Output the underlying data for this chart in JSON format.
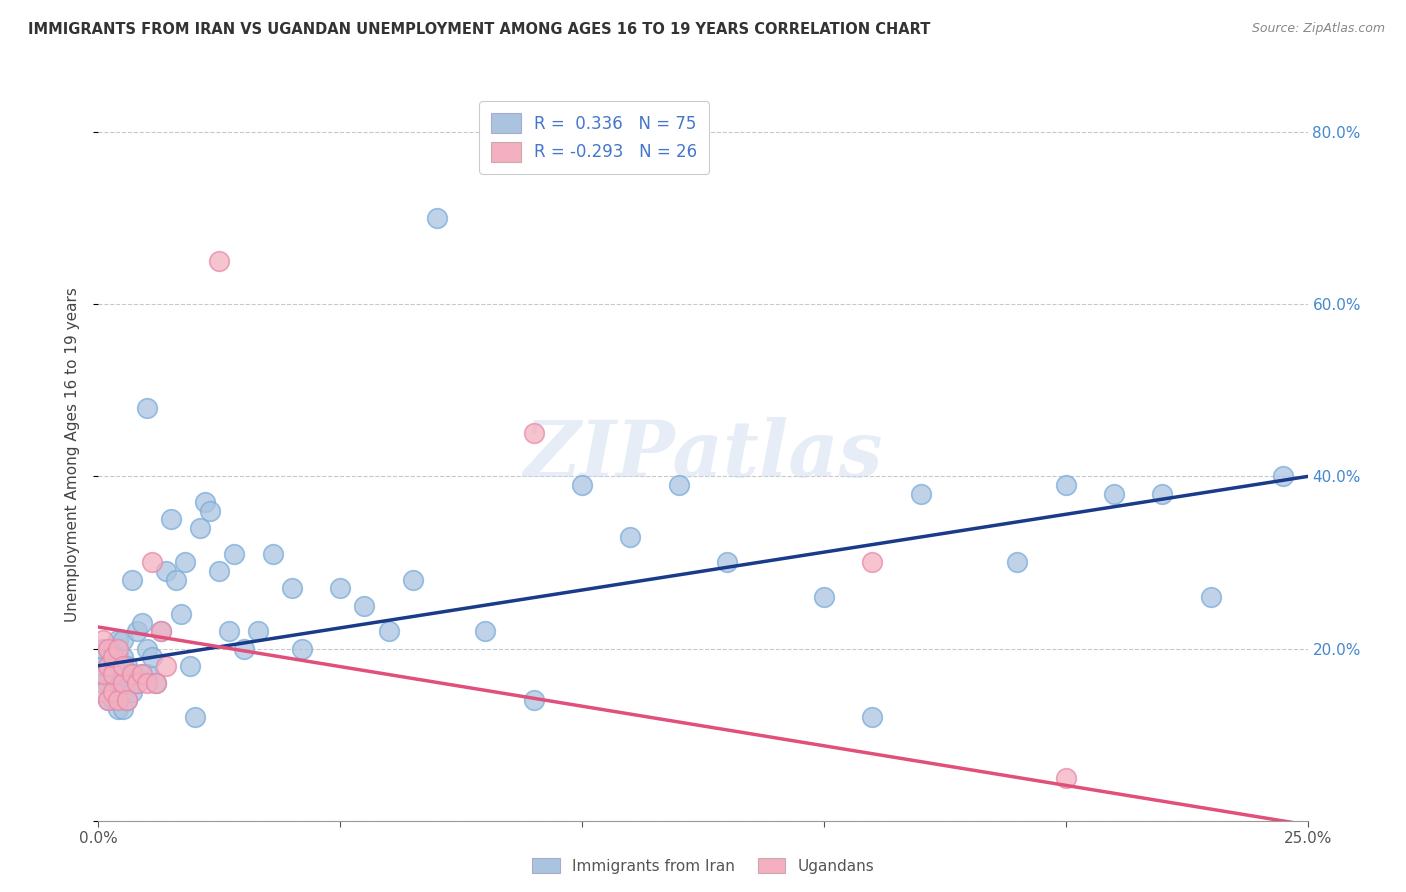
{
  "title": "IMMIGRANTS FROM IRAN VS UGANDAN UNEMPLOYMENT AMONG AGES 16 TO 19 YEARS CORRELATION CHART",
  "source": "Source: ZipAtlas.com",
  "ylabel": "Unemployment Among Ages 16 to 19 years",
  "xmin": 0.0,
  "xmax": 0.25,
  "ymin": 0.0,
  "ymax": 0.85,
  "x_ticks": [
    0.0,
    0.05,
    0.1,
    0.15,
    0.2,
    0.25
  ],
  "y_ticks": [
    0.0,
    0.2,
    0.4,
    0.6,
    0.8
  ],
  "iran_color": "#aac4e0",
  "uganda_color": "#f4b0c0",
  "iran_line_color": "#1a3a8a",
  "uganda_line_color": "#e0507a",
  "iran_r": 0.336,
  "iran_n": 75,
  "uganda_r": -0.293,
  "uganda_n": 26,
  "watermark": "ZIPatlas",
  "background_color": "#ffffff",
  "grid_color": "#bbbbbb",
  "iran_scatter_x": [
    0.001,
    0.001,
    0.001,
    0.002,
    0.002,
    0.002,
    0.002,
    0.003,
    0.003,
    0.003,
    0.003,
    0.004,
    0.004,
    0.004,
    0.004,
    0.004,
    0.005,
    0.005,
    0.005,
    0.005,
    0.005,
    0.006,
    0.006,
    0.006,
    0.007,
    0.007,
    0.007,
    0.008,
    0.008,
    0.009,
    0.009,
    0.01,
    0.01,
    0.01,
    0.011,
    0.012,
    0.013,
    0.014,
    0.015,
    0.016,
    0.017,
    0.018,
    0.019,
    0.02,
    0.021,
    0.022,
    0.023,
    0.025,
    0.027,
    0.028,
    0.03,
    0.033,
    0.036,
    0.04,
    0.042,
    0.05,
    0.055,
    0.06,
    0.065,
    0.07,
    0.08,
    0.09,
    0.1,
    0.11,
    0.12,
    0.13,
    0.15,
    0.16,
    0.17,
    0.19,
    0.2,
    0.21,
    0.22,
    0.23,
    0.245
  ],
  "iran_scatter_y": [
    0.16,
    0.18,
    0.2,
    0.14,
    0.16,
    0.18,
    0.2,
    0.14,
    0.16,
    0.18,
    0.2,
    0.13,
    0.15,
    0.17,
    0.19,
    0.21,
    0.13,
    0.15,
    0.17,
    0.19,
    0.21,
    0.14,
    0.16,
    0.18,
    0.15,
    0.17,
    0.28,
    0.16,
    0.22,
    0.17,
    0.23,
    0.17,
    0.2,
    0.48,
    0.19,
    0.16,
    0.22,
    0.29,
    0.35,
    0.28,
    0.24,
    0.3,
    0.18,
    0.12,
    0.34,
    0.37,
    0.36,
    0.29,
    0.22,
    0.31,
    0.2,
    0.22,
    0.31,
    0.27,
    0.2,
    0.27,
    0.25,
    0.22,
    0.28,
    0.7,
    0.22,
    0.14,
    0.39,
    0.33,
    0.39,
    0.3,
    0.26,
    0.12,
    0.38,
    0.3,
    0.39,
    0.38,
    0.38,
    0.26,
    0.4
  ],
  "uganda_scatter_x": [
    0.001,
    0.001,
    0.001,
    0.002,
    0.002,
    0.002,
    0.003,
    0.003,
    0.003,
    0.004,
    0.004,
    0.005,
    0.005,
    0.006,
    0.007,
    0.008,
    0.009,
    0.01,
    0.011,
    0.012,
    0.013,
    0.014,
    0.025,
    0.09,
    0.16,
    0.2
  ],
  "uganda_scatter_y": [
    0.15,
    0.17,
    0.21,
    0.14,
    0.18,
    0.2,
    0.15,
    0.17,
    0.19,
    0.14,
    0.2,
    0.16,
    0.18,
    0.14,
    0.17,
    0.16,
    0.17,
    0.16,
    0.3,
    0.16,
    0.22,
    0.18,
    0.65,
    0.45,
    0.3,
    0.05
  ],
  "iran_line_x0": 0.0,
  "iran_line_x1": 0.25,
  "iran_line_y0": 0.18,
  "iran_line_y1": 0.4,
  "uganda_line_x0": 0.0,
  "uganda_line_x1": 0.25,
  "uganda_line_y0": 0.225,
  "uganda_line_y1": -0.005
}
